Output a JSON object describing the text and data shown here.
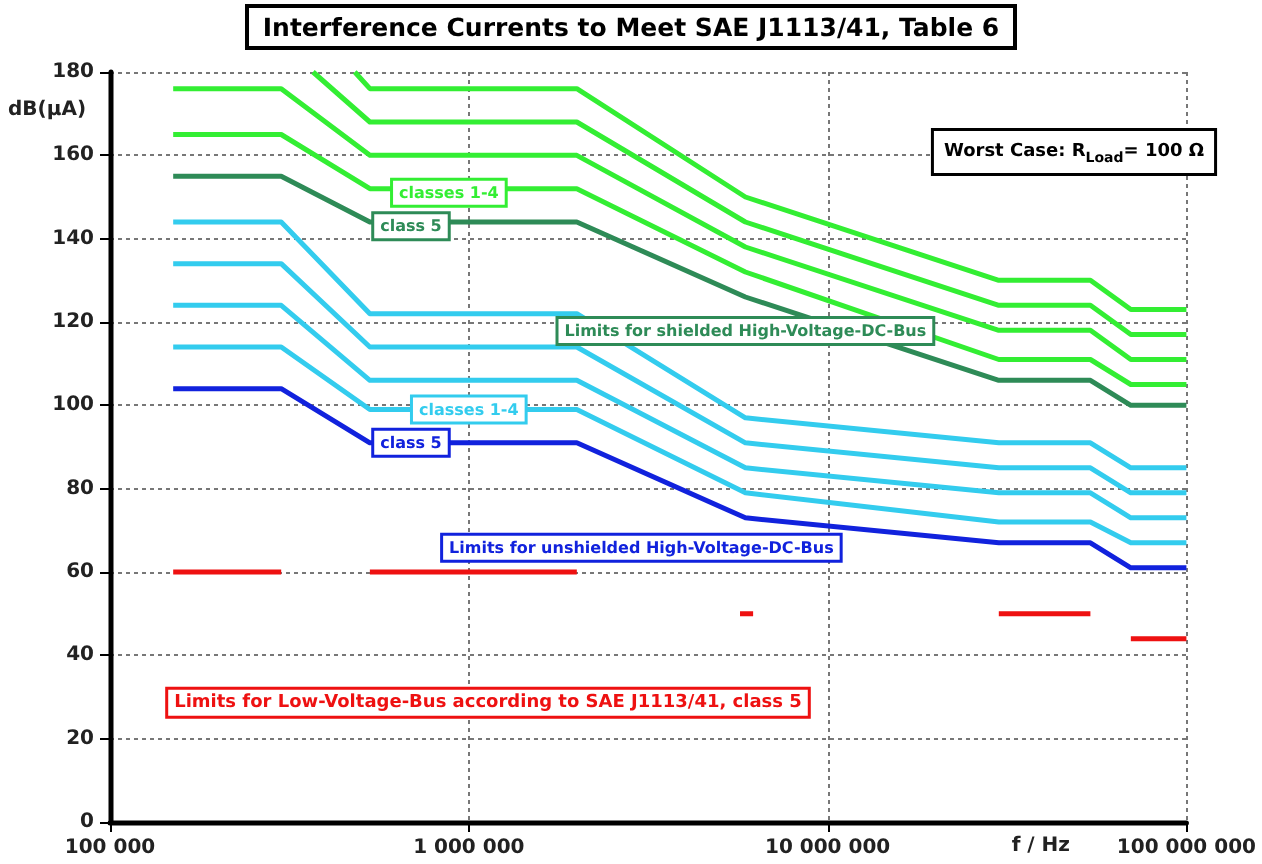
{
  "chart_data": {
    "type": "line",
    "title": "Interference Currents to Meet SAE J1113/41, Table 6",
    "xlabel": "f / Hz",
    "ylabel": "dB(µA)",
    "log": "x",
    "grid": true,
    "marker": "none",
    "line_style": "solid",
    "xlim": [
      100000,
      100000000
    ],
    "xticks": [
      {
        "value": 100000,
        "label": "100 000"
      },
      {
        "value": 1000000,
        "label": "1 000 000"
      },
      {
        "value": 10000000,
        "label": "10 000 000"
      },
      {
        "value": 100000000,
        "label": "100 000 000"
      }
    ],
    "ylim": [
      0,
      180
    ],
    "yticks": [
      0,
      20,
      40,
      60,
      80,
      100,
      120,
      140,
      160,
      180
    ],
    "series": [
      {
        "color": "#33ee33",
        "x": [
          481000,
          530000,
          2000000,
          5900000,
          30000000,
          54000000,
          70000000,
          100000000
        ],
        "values": [
          180,
          176,
          176,
          150,
          130,
          130,
          123,
          123
        ]
      },
      {
        "color": "#33ee33",
        "x": [
          368000,
          530000,
          2000000,
          5900000,
          30000000,
          54000000,
          70000000,
          100000000
        ],
        "values": [
          180,
          168,
          168,
          144,
          124,
          124,
          117,
          117
        ]
      },
      {
        "color": "#33ee33",
        "x": [
          150000,
          300000,
          530000,
          2000000,
          5900000,
          30000000,
          54000000,
          70000000,
          100000000
        ],
        "values": [
          176,
          176,
          160,
          160,
          138,
          118,
          118,
          111,
          111
        ]
      },
      {
        "color": "#33ee33",
        "x": [
          150000,
          300000,
          530000,
          2000000,
          5900000,
          30000000,
          54000000,
          70000000,
          100000000
        ],
        "values": [
          165,
          165,
          152,
          152,
          132,
          111,
          111,
          105,
          105
        ]
      },
      {
        "color": "#2e8b57",
        "x": [
          150000,
          300000,
          530000,
          2000000,
          5900000,
          30000000,
          54000000,
          70000000,
          100000000
        ],
        "values": [
          155,
          155,
          144,
          144,
          126,
          106,
          106,
          100,
          100
        ]
      },
      {
        "color": "#33ccee",
        "x": [
          150000,
          300000,
          530000,
          2000000,
          5900000,
          30000000,
          54000000,
          70000000,
          100000000
        ],
        "values": [
          144,
          144,
          122,
          122,
          97,
          91,
          91,
          85,
          85
        ]
      },
      {
        "color": "#33ccee",
        "x": [
          150000,
          300000,
          530000,
          2000000,
          5900000,
          30000000,
          54000000,
          70000000,
          100000000
        ],
        "values": [
          134,
          134,
          114,
          114,
          91,
          85,
          85,
          79,
          79
        ]
      },
      {
        "color": "#33ccee",
        "x": [
          150000,
          300000,
          530000,
          2000000,
          5900000,
          30000000,
          54000000,
          70000000,
          100000000
        ],
        "values": [
          124,
          124,
          106,
          106,
          85,
          79,
          79,
          73,
          73
        ]
      },
      {
        "color": "#33ccee",
        "x": [
          150000,
          300000,
          530000,
          2000000,
          5900000,
          30000000,
          54000000,
          70000000,
          100000000
        ],
        "values": [
          114,
          114,
          99,
          99,
          79,
          72,
          72,
          67,
          67
        ]
      },
      {
        "color": "#1122dd",
        "x": [
          150000,
          300000,
          530000,
          2000000,
          5900000,
          30000000,
          54000000,
          70000000,
          100000000
        ],
        "values": [
          104,
          104,
          91,
          91,
          73,
          67,
          67,
          61,
          61
        ]
      },
      {
        "name": "Limits for Low-Voltage-Bus according to SAE J1113/41, class 5",
        "color": "#ee1111",
        "x": [
          150000,
          300000,
          400000,
          530000,
          2000000,
          4000000,
          5700000,
          6200000,
          10000000,
          30000000,
          54000000,
          60000000,
          70000000,
          100000000
        ],
        "values": [
          60,
          60,
          null,
          60,
          60,
          null,
          50,
          50,
          null,
          50,
          50,
          null,
          44,
          44
        ]
      }
    ],
    "annotations": [
      {
        "text": "classes 1-4",
        "x": 880000,
        "y": 151
      },
      {
        "text": "class 5",
        "x": 690000,
        "y": 143
      },
      {
        "text": "Limits for shielded High-Voltage-DC-Bus",
        "x": 5900000,
        "y": 126
      },
      {
        "text": "classes 1-4",
        "x": 1000000,
        "y": 99
      },
      {
        "text": "class 5",
        "x": 690000,
        "y": 91
      },
      {
        "text": "Limits for unshielded High-Voltage-DC-Bus",
        "x": 5900000,
        "y": 73
      },
      "Worst Case: R$_{Load}$= 100 Ω"
    ]
  }
}
